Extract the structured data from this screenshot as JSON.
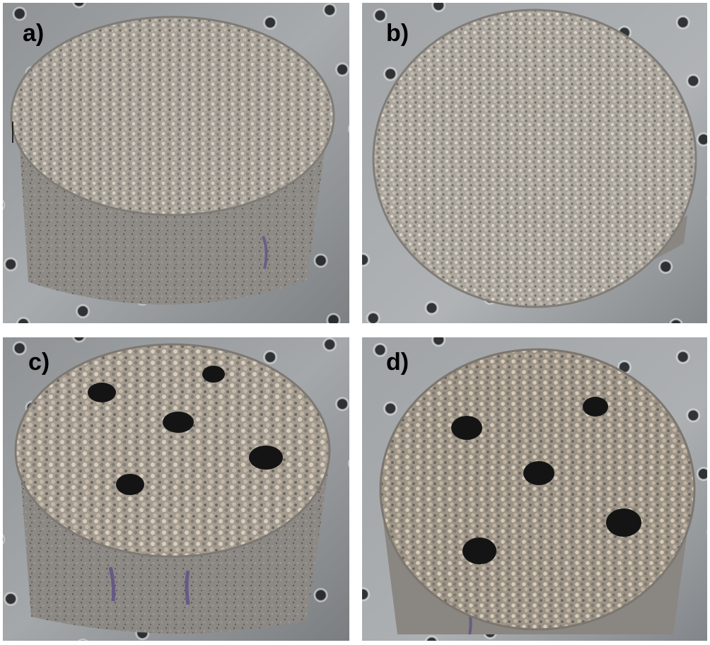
{
  "figure": {
    "panels": [
      {
        "id": "a",
        "label": "a)",
        "holes": 0
      },
      {
        "id": "b",
        "label": "b)",
        "holes": 0
      },
      {
        "id": "c",
        "label": "c)",
        "holes": 5
      },
      {
        "id": "d",
        "label": "d)",
        "holes": 5
      }
    ]
  },
  "colors": {
    "plate": "#9ea2a4",
    "plate_dark": "#6f7376",
    "plate_hole": "#1c1d1f",
    "sample_top": "#a9a49c",
    "sample_side": "#8f8c88",
    "grain_light": "#d8d0c4",
    "grain_mid": "#b3aa9e",
    "grain_dark": "#6e6a66",
    "marker_purple": "#5b4a86",
    "void": "#141414",
    "label_text": "#000000"
  }
}
